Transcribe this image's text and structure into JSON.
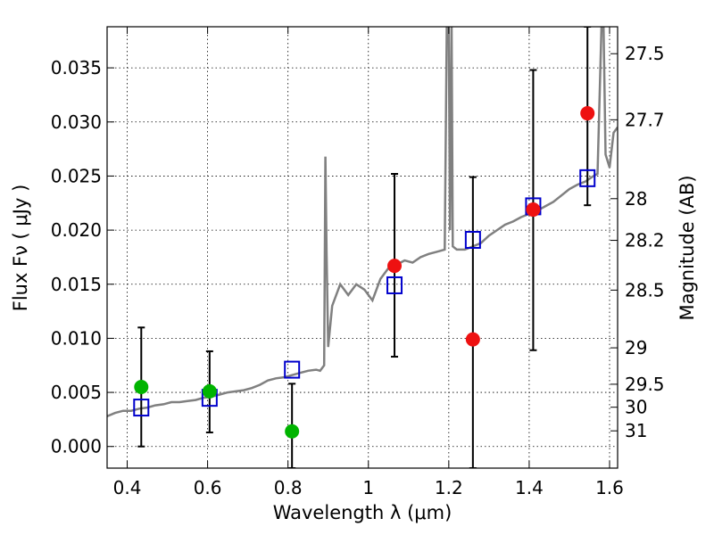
{
  "chart_data": {
    "type": "scatter",
    "x_axis": {
      "label": "Wavelength  λ (μm)",
      "lim": [
        0.35,
        1.62
      ],
      "ticks": [
        0.4,
        0.6,
        0.8,
        1.0,
        1.2,
        1.4,
        1.6
      ],
      "tick_labels": [
        "0.4",
        "0.6",
        "0.8",
        "1",
        "1.2",
        "1.4",
        "1.6"
      ]
    },
    "y_axis": {
      "label": "Flux  Fν  ( μJy )",
      "lim": [
        -0.002,
        0.0388
      ],
      "ticks": [
        0.0,
        0.005,
        0.01,
        0.015,
        0.02,
        0.025,
        0.03,
        0.035
      ],
      "tick_labels": [
        "0.000",
        "0.005",
        "0.010",
        "0.015",
        "0.020",
        "0.025",
        "0.030",
        "0.035"
      ]
    },
    "y2_axis": {
      "label": "Magnitude (AB)",
      "ticks": [
        27.5,
        27.7,
        28,
        28.2,
        28.5,
        29,
        29.5,
        30,
        31
      ],
      "tick_labels": [
        "27.5",
        "27.7",
        "28",
        "28.2",
        "28.5",
        "29",
        "29.5",
        "30",
        "31"
      ]
    },
    "grid": true,
    "colors": {
      "spectrum": "#808080",
      "model_box": "#0000cc",
      "green_point": "#00b400",
      "red_point": "#ee1111",
      "errorbar": "#000000"
    },
    "spectrum": {
      "x": [
        0.35,
        0.37,
        0.39,
        0.41,
        0.43,
        0.45,
        0.47,
        0.49,
        0.51,
        0.53,
        0.55,
        0.57,
        0.59,
        0.61,
        0.63,
        0.65,
        0.67,
        0.69,
        0.71,
        0.73,
        0.75,
        0.77,
        0.79,
        0.81,
        0.83,
        0.85,
        0.87,
        0.88,
        0.89,
        0.893,
        0.896,
        0.9,
        0.91,
        0.93,
        0.95,
        0.97,
        0.99,
        1.01,
        1.03,
        1.05,
        1.07,
        1.09,
        1.11,
        1.13,
        1.15,
        1.17,
        1.19,
        1.195,
        1.2,
        1.203,
        1.207,
        1.21,
        1.22,
        1.24,
        1.26,
        1.28,
        1.3,
        1.32,
        1.34,
        1.36,
        1.38,
        1.4,
        1.42,
        1.44,
        1.46,
        1.48,
        1.5,
        1.52,
        1.54,
        1.56,
        1.57,
        1.58,
        1.585,
        1.59,
        1.6,
        1.61,
        1.62
      ],
      "y": [
        0.0028,
        0.0031,
        0.0033,
        0.0033,
        0.0035,
        0.0036,
        0.0038,
        0.0039,
        0.0041,
        0.0041,
        0.0042,
        0.0043,
        0.0045,
        0.0046,
        0.0048,
        0.005,
        0.0051,
        0.0052,
        0.0054,
        0.0057,
        0.0061,
        0.0063,
        0.0064,
        0.0066,
        0.0068,
        0.007,
        0.0071,
        0.007,
        0.0075,
        0.0268,
        0.018,
        0.0092,
        0.013,
        0.015,
        0.014,
        0.015,
        0.0145,
        0.0135,
        0.0155,
        0.0165,
        0.0168,
        0.0172,
        0.017,
        0.0175,
        0.0178,
        0.018,
        0.0182,
        0.039,
        0.039,
        0.02,
        0.039,
        0.0185,
        0.0182,
        0.0182,
        0.0185,
        0.0188,
        0.0195,
        0.02,
        0.0205,
        0.0208,
        0.0212,
        0.0215,
        0.0218,
        0.0222,
        0.0226,
        0.0232,
        0.0238,
        0.0242,
        0.0245,
        0.025,
        0.0252,
        0.039,
        0.039,
        0.027,
        0.0258,
        0.029,
        0.0295
      ]
    },
    "model_boxes": {
      "x": [
        0.435,
        0.605,
        0.81,
        1.065,
        1.26,
        1.41,
        1.545
      ],
      "y": [
        0.0036,
        0.0045,
        0.0071,
        0.0149,
        0.0191,
        0.0222,
        0.0248
      ]
    },
    "points": [
      {
        "x": 0.435,
        "y": 0.0055,
        "color": "green",
        "err_low": 0.0,
        "err_high": 0.011
      },
      {
        "x": 0.605,
        "y": 0.0051,
        "color": "green",
        "err_low": 0.0013,
        "err_high": 0.0088
      },
      {
        "x": 0.81,
        "y": 0.0014,
        "color": "green",
        "err_low": -0.002,
        "err_high": 0.0058
      },
      {
        "x": 1.065,
        "y": 0.0167,
        "color": "red",
        "err_low": 0.0083,
        "err_high": 0.0252
      },
      {
        "x": 1.26,
        "y": 0.0099,
        "color": "red",
        "err_low": -0.002,
        "err_high": 0.0249
      },
      {
        "x": 1.41,
        "y": 0.0219,
        "color": "red",
        "err_low": 0.0089,
        "err_high": 0.0348
      },
      {
        "x": 1.545,
        "y": 0.0308,
        "color": "red",
        "err_low": 0.0223,
        "err_high": 0.0388
      }
    ]
  }
}
